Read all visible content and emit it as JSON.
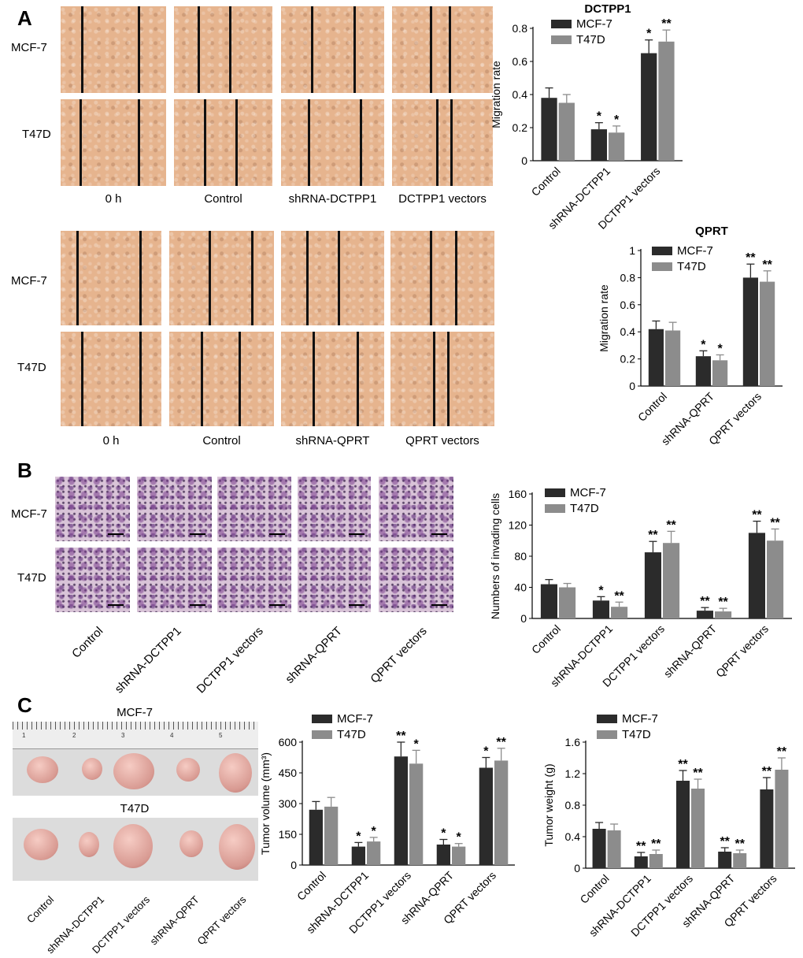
{
  "panels": {
    "a": "A",
    "b": "B",
    "c": "C"
  },
  "panel_a": {
    "top_rows": [
      "MCF-7",
      "T47D"
    ],
    "top_cols": [
      "0 h",
      "Control",
      "shRNA-DCTPP1",
      "DCTPP1 vectors"
    ],
    "bottom_rows": [
      "MCF-7",
      "T47D"
    ],
    "bottom_cols": [
      "0 h",
      "Control",
      "shRNA-QPRT",
      "QPRT vectors"
    ]
  },
  "panel_b": {
    "rows": [
      "MCF-7",
      "T47D"
    ],
    "cols": [
      "Control",
      "shRNA-DCTPP1",
      "DCTPP1 vectors",
      "shRNA-QPRT",
      "QPRT vectors"
    ]
  },
  "panel_c": {
    "photo_titles": [
      "MCF-7",
      "T47D"
    ],
    "ruler_marks": [
      "1",
      "2",
      "3",
      "4",
      "5"
    ],
    "photo_labels": [
      "Control",
      "shRNA-DCTPP1",
      "DCTPP1 vectors",
      "shRNA-QPRT",
      "QPRT vectors"
    ]
  },
  "colors": {
    "mcf7": "#2b2b2b",
    "t47d": "#8c8c8c"
  },
  "chart_data": [
    {
      "id": "dctpp1",
      "type": "bar",
      "title": "DCTPP1",
      "ylabel": "Migration rate",
      "categories": [
        "Control",
        "shRNA-DCTPP1",
        "DCTPP1 vectors"
      ],
      "ylim": [
        0,
        0.8
      ],
      "yticks": [
        "0",
        "0.2",
        "0.4",
        "0.6",
        "0.8"
      ],
      "series": [
        {
          "name": "MCF-7",
          "values": [
            0.38,
            0.19,
            0.65
          ],
          "errors": [
            0.06,
            0.04,
            0.08
          ],
          "sig": [
            "",
            "*",
            "*"
          ]
        },
        {
          "name": "T47D",
          "values": [
            0.35,
            0.17,
            0.72
          ],
          "errors": [
            0.05,
            0.04,
            0.07
          ],
          "sig": [
            "",
            "*",
            "**"
          ]
        }
      ]
    },
    {
      "id": "qprt",
      "type": "bar",
      "title": "QPRT",
      "ylabel": "Migration rate",
      "categories": [
        "Control",
        "shRNA-QPRT",
        "QPRT vectors"
      ],
      "ylim": [
        0,
        1
      ],
      "yticks": [
        "0",
        "0.2",
        "0.4",
        "0.6",
        "0.8",
        "1"
      ],
      "series": [
        {
          "name": "MCF-7",
          "values": [
            0.42,
            0.22,
            0.8
          ],
          "errors": [
            0.06,
            0.04,
            0.1
          ],
          "sig": [
            "",
            "*",
            "**"
          ]
        },
        {
          "name": "T47D",
          "values": [
            0.41,
            0.19,
            0.77
          ],
          "errors": [
            0.06,
            0.04,
            0.08
          ],
          "sig": [
            "",
            "*",
            "**"
          ]
        }
      ]
    },
    {
      "id": "invading",
      "type": "bar",
      "title": "",
      "ylabel": "Numbers of invading cells",
      "categories": [
        "Control",
        "shRNA-DCTPP1",
        "DCTPP1 vectors",
        "shRNA-QPRT",
        "QPRT vectors"
      ],
      "ylim": [
        0,
        160
      ],
      "yticks": [
        "0",
        "40",
        "80",
        "120",
        "160"
      ],
      "series": [
        {
          "name": "MCF-7",
          "values": [
            44,
            23,
            85,
            10,
            110
          ],
          "errors": [
            6,
            5,
            14,
            4,
            15
          ],
          "sig": [
            "",
            "*",
            "**",
            "**",
            "**"
          ]
        },
        {
          "name": "T47D",
          "values": [
            40,
            15,
            97,
            9,
            100
          ],
          "errors": [
            5,
            6,
            15,
            4,
            15
          ],
          "sig": [
            "",
            "**",
            "**",
            "**",
            "**"
          ]
        }
      ]
    },
    {
      "id": "volume",
      "type": "bar",
      "title": "",
      "ylabel": "Tumor volume (mm³)",
      "categories": [
        "Control",
        "shRNA-DCTPP1",
        "DCTPP1 vectors",
        "shRNA-QPRT",
        "QPRT vectors"
      ],
      "ylim": [
        0,
        600
      ],
      "yticks": [
        "0",
        "150",
        "300",
        "450",
        "600"
      ],
      "series": [
        {
          "name": "MCF-7",
          "values": [
            270,
            90,
            530,
            100,
            475
          ],
          "errors": [
            40,
            20,
            70,
            25,
            50
          ],
          "sig": [
            "",
            "*",
            "**",
            "*",
            "*"
          ]
        },
        {
          "name": "T47D",
          "values": [
            285,
            115,
            495,
            90,
            510
          ],
          "errors": [
            45,
            20,
            65,
            15,
            60
          ],
          "sig": [
            "",
            "*",
            "*",
            "*",
            "**"
          ]
        }
      ]
    },
    {
      "id": "weight",
      "type": "bar",
      "title": "",
      "ylabel": "Tumor weight (g)",
      "categories": [
        "Control",
        "shRNA-DCTPP1",
        "DCTPP1 vectors",
        "shRNA-QPRT",
        "QPRT vectors"
      ],
      "ylim": [
        0,
        1.6
      ],
      "yticks": [
        "0",
        "0.4",
        "0.8",
        "1.2",
        "1.6"
      ],
      "series": [
        {
          "name": "MCF-7",
          "values": [
            0.5,
            0.15,
            1.11,
            0.21,
            1.0
          ],
          "errors": [
            0.08,
            0.05,
            0.13,
            0.05,
            0.15
          ],
          "sig": [
            "",
            "**",
            "**",
            "**",
            "**"
          ]
        },
        {
          "name": "T47D",
          "values": [
            0.48,
            0.18,
            1.01,
            0.19,
            1.25
          ],
          "errors": [
            0.08,
            0.05,
            0.12,
            0.04,
            0.15
          ],
          "sig": [
            "",
            "**",
            "**",
            "**",
            "**"
          ]
        }
      ]
    }
  ]
}
